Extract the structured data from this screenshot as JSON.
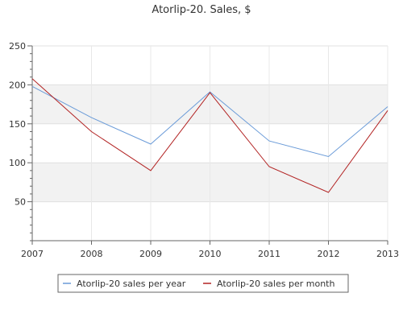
{
  "chart_data": {
    "type": "line",
    "title": "Atorlip-20. Sales, $",
    "xlabel": "",
    "ylabel": "",
    "x": [
      2007,
      2008,
      2009,
      2010,
      2011,
      2012,
      2013
    ],
    "xticks": [
      "2007",
      "2008",
      "2009",
      "2010",
      "2011",
      "2012",
      "2013"
    ],
    "ylim": [
      0,
      250
    ],
    "yticks": [
      "50",
      "100",
      "150",
      "200",
      "250"
    ],
    "grid": true,
    "legend_position": "bottom",
    "series": [
      {
        "name": "Atorlip-20 sales per year",
        "color": "#6a9bd8",
        "values": [
          198,
          158,
          124,
          191,
          128,
          108,
          172
        ]
      },
      {
        "name": "Atorlip-20 sales per month",
        "color": "#b22222",
        "values": [
          208,
          140,
          90,
          190,
          95,
          62,
          167
        ]
      }
    ]
  }
}
